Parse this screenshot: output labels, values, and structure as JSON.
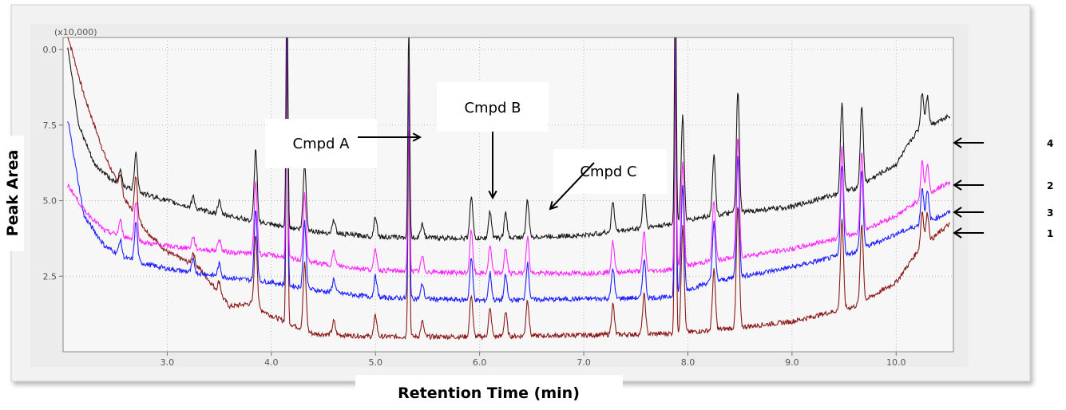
{
  "chart_data": {
    "type": "line",
    "xlabel": "Retention Time (min)",
    "ylabel": "Peak Area",
    "y_multiplier": "(x10,000)",
    "xlim": [
      2.0,
      10.55
    ],
    "ylim": [
      0.0,
      10.4
    ],
    "x_ticks": [
      "3.0",
      "4.0",
      "5.0",
      "6.0",
      "7.0",
      "8.0",
      "9.0",
      "10.0"
    ],
    "y_ticks": [
      "2.5",
      "5.0",
      "7.5",
      "0.0"
    ],
    "grid": "dotted",
    "colors": {
      "1": "#8b1a1a",
      "2": "#ff2aff",
      "3": "#1f1fff",
      "4": "#1a1a1a"
    },
    "series": [
      {
        "name": "1",
        "color": "#8b1a1a",
        "end_value": 4.2,
        "x": [
          2.05,
          2.2,
          2.4,
          2.6,
          2.8,
          3.0,
          3.3,
          3.6,
          3.8,
          4.0,
          4.4,
          5.0,
          6.0,
          7.0,
          7.8,
          8.2,
          9.0,
          9.6,
          10.0,
          10.2,
          10.5
        ],
        "y": [
          10.4,
          8.5,
          6.5,
          5.0,
          4.0,
          3.3,
          2.8,
          1.5,
          1.6,
          1.2,
          0.6,
          0.5,
          0.5,
          0.55,
          0.6,
          0.7,
          1.0,
          1.5,
          2.3,
          3.3,
          4.2
        ]
      },
      {
        "name": "2",
        "color": "#ff2aff",
        "end_value": 5.6,
        "x": [
          2.05,
          2.2,
          2.4,
          2.6,
          2.8,
          3.0,
          3.3,
          3.6,
          4.0,
          4.5,
          5.0,
          6.0,
          7.0,
          7.8,
          8.2,
          9.0,
          9.6,
          10.0,
          10.3,
          10.5
        ],
        "y": [
          5.5,
          4.7,
          4.0,
          3.8,
          3.6,
          3.5,
          3.4,
          3.3,
          3.2,
          2.9,
          2.7,
          2.6,
          2.6,
          2.7,
          3.0,
          3.4,
          3.9,
          4.5,
          5.2,
          5.6
        ]
      },
      {
        "name": "3",
        "color": "#1f1fff",
        "end_value": 4.6,
        "x": [
          2.05,
          2.2,
          2.4,
          2.6,
          2.8,
          3.0,
          3.3,
          3.6,
          4.0,
          4.5,
          5.0,
          6.0,
          7.0,
          7.8,
          8.2,
          9.0,
          9.6,
          10.0,
          10.3,
          10.5
        ],
        "y": [
          7.6,
          4.5,
          3.5,
          3.1,
          2.9,
          2.75,
          2.6,
          2.45,
          2.3,
          2.0,
          1.8,
          1.7,
          1.75,
          1.8,
          2.3,
          2.8,
          3.3,
          3.9,
          4.3,
          4.6
        ]
      },
      {
        "name": "4",
        "color": "#1a1a1a",
        "end_value": 7.8,
        "x": [
          2.05,
          2.15,
          2.3,
          2.5,
          2.8,
          3.0,
          3.3,
          3.6,
          4.0,
          4.5,
          5.0,
          6.0,
          7.0,
          7.8,
          8.2,
          9.0,
          9.6,
          10.0,
          10.2,
          10.5
        ],
        "y": [
          10.0,
          7.5,
          6.2,
          5.6,
          5.2,
          5.0,
          4.7,
          4.5,
          4.2,
          3.95,
          3.8,
          3.75,
          3.85,
          4.2,
          4.5,
          4.8,
          5.4,
          6.2,
          7.3,
          7.8
        ]
      }
    ],
    "peaks": [
      {
        "x": 2.55,
        "h": 0.5
      },
      {
        "x": 2.7,
        "h": 1.3
      },
      {
        "x": 3.25,
        "h": 0.4
      },
      {
        "x": 3.5,
        "h": 0.4
      },
      {
        "x": 3.85,
        "h": 2.4
      },
      {
        "x": 4.15,
        "h": 9.0
      },
      {
        "x": 4.32,
        "h": 2.2
      },
      {
        "x": 4.6,
        "h": 0.45
      },
      {
        "x": 5.0,
        "h": 0.7
      },
      {
        "x": 5.32,
        "h": 7.0
      },
      {
        "x": 5.45,
        "h": 0.5
      },
      {
        "x": 5.92,
        "h": 1.4
      },
      {
        "x": 6.1,
        "h": 0.9
      },
      {
        "x": 6.25,
        "h": 0.8
      },
      {
        "x": 6.46,
        "h": 1.2
      },
      {
        "x": 7.28,
        "h": 1.0
      },
      {
        "x": 7.58,
        "h": 1.3
      },
      {
        "x": 7.88,
        "h": 9.0
      },
      {
        "x": 7.95,
        "h": 3.5
      },
      {
        "x": 8.25,
        "h": 2.0
      },
      {
        "x": 8.48,
        "h": 4.0
      },
      {
        "x": 9.48,
        "h": 3.0
      },
      {
        "x": 9.67,
        "h": 2.6
      },
      {
        "x": 10.25,
        "h": 1.2
      },
      {
        "x": 10.3,
        "h": 1.0
      }
    ],
    "annotations": [
      {
        "label": "Cmpd A",
        "x": 5.32
      },
      {
        "label": "Cmpd B",
        "x": 5.92
      },
      {
        "label": "Cmpd C",
        "x": 6.46
      }
    ]
  }
}
